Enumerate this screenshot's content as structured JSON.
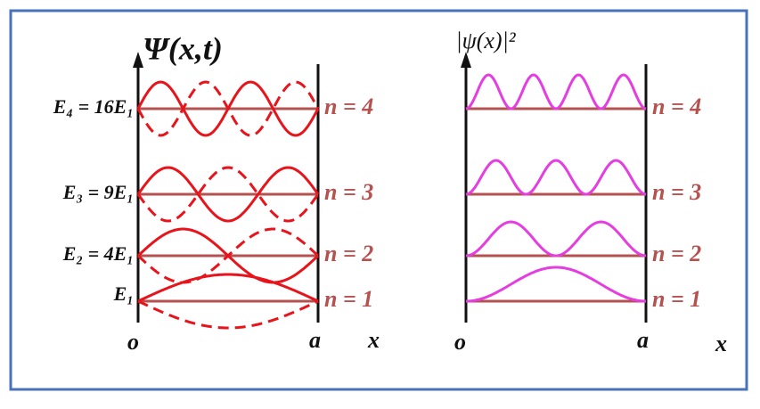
{
  "left": {
    "title": "Ψ(x,t)",
    "levels": [
      {
        "energy": "E₄ = 16E₁",
        "state": "n = 4"
      },
      {
        "energy": "E₃ = 9E₁",
        "state": "n = 3"
      },
      {
        "energy": "E₂ = 4E₁",
        "state": "n = 2"
      },
      {
        "energy": "E₁",
        "state": "n = 1"
      }
    ],
    "origin": "o",
    "end": "a",
    "axis": "x"
  },
  "right": {
    "title": "|ψ(x)|²",
    "levels": [
      {
        "state": "n = 4"
      },
      {
        "state": "n = 3"
      },
      {
        "state": "n = 2"
      },
      {
        "state": "n = 1"
      }
    ],
    "origin": "o",
    "end": "a",
    "axis": "x"
  }
}
